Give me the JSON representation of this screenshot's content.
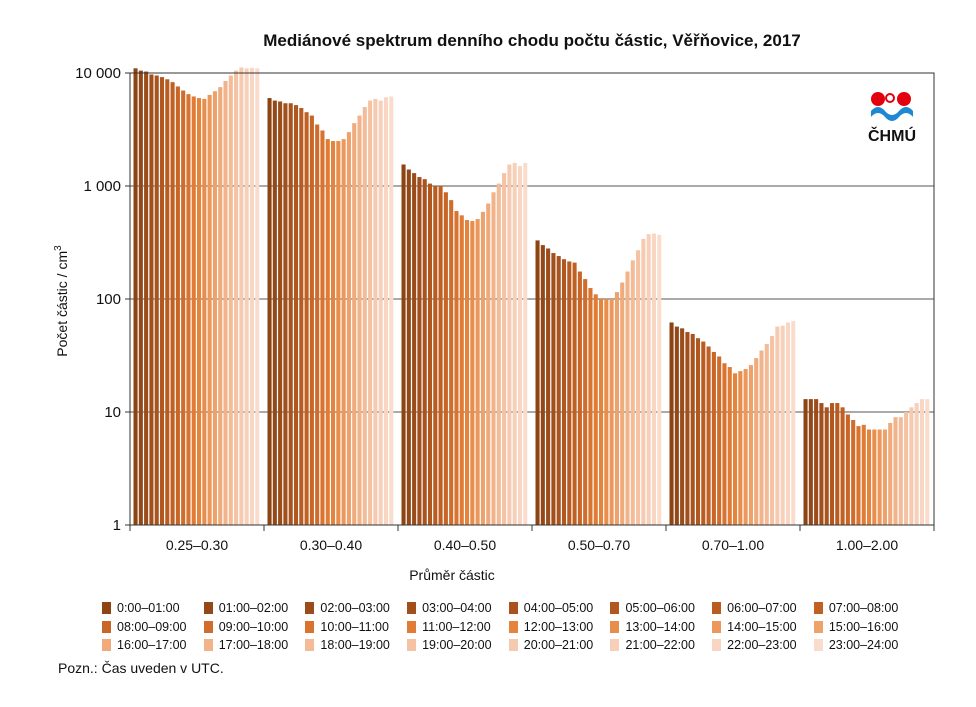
{
  "title": "Mediánové spektrum denního chodu počtu částic, Věřňovice, 2017",
  "note": "Pozn.: Čas uveden v UTC.",
  "logo_text": "ČHMÚ",
  "chart_data": {
    "type": "bar",
    "title": "Mediánové spektrum denního chodu počtu částic, Věřňovice, 2017",
    "xlabel": "Průměr částic",
    "ylabel": "Počet částic / cm",
    "ylabel_superscript": "3",
    "yscale": "log",
    "ylim": [
      1,
      10000
    ],
    "yticks": [
      1,
      10,
      100,
      1000,
      10000
    ],
    "ytick_labels": [
      "1",
      "10",
      "100",
      "1 000",
      "10 000"
    ],
    "grid": "horizontal",
    "legend_position": "bottom",
    "categories": [
      "0.25–0.30",
      "0.30–0.40",
      "0.40–0.50",
      "0.50–0.70",
      "0.70–1.00",
      "1.00–2.00"
    ],
    "colors": [
      "#8c4512",
      "#93481a",
      "#9a4c1a",
      "#a1501c",
      "#a9541e",
      "#b05820",
      "#b85c22",
      "#c06123",
      "#c86628",
      "#d06c2c",
      "#d8742f",
      "#e07c35",
      "#e5853d",
      "#e88e4d",
      "#ec985c",
      "#eea26b",
      "#f0ab7c",
      "#f1b38a",
      "#f3bb97",
      "#f5c3a4",
      "#f6cab0",
      "#f7d0ba",
      "#f9d6c4",
      "#fadccd"
    ],
    "series": [
      {
        "name": "0:00–01:00",
        "values": [
          11000,
          6000,
          1550,
          330,
          62,
          13
        ]
      },
      {
        "name": "01:00–02:00",
        "values": [
          10500,
          5700,
          1400,
          300,
          57,
          13
        ]
      },
      {
        "name": "02:00–03:00",
        "values": [
          10300,
          5600,
          1300,
          280,
          55,
          13
        ]
      },
      {
        "name": "03:00–04:00",
        "values": [
          9700,
          5400,
          1200,
          255,
          51,
          12
        ]
      },
      {
        "name": "04:00–05:00",
        "values": [
          9500,
          5400,
          1150,
          240,
          49,
          11
        ]
      },
      {
        "name": "05:00–06:00",
        "values": [
          9200,
          5200,
          1050,
          225,
          45,
          12
        ]
      },
      {
        "name": "06:00–07:00",
        "values": [
          8800,
          4900,
          1000,
          215,
          42,
          12
        ]
      },
      {
        "name": "07:00–08:00",
        "values": [
          8300,
          4500,
          1000,
          210,
          38,
          11
        ]
      },
      {
        "name": "08:00–09:00",
        "values": [
          7600,
          4200,
          880,
          175,
          34,
          9.5
        ]
      },
      {
        "name": "09:00–10:00",
        "values": [
          7000,
          3500,
          750,
          150,
          31,
          8.5
        ]
      },
      {
        "name": "10:00–11:00",
        "values": [
          6500,
          3100,
          600,
          125,
          27,
          7.5
        ]
      },
      {
        "name": "11:00–12:00",
        "values": [
          6200,
          2600,
          550,
          110,
          25,
          7.7
        ]
      },
      {
        "name": "12:00–13:00",
        "values": [
          6000,
          2500,
          500,
          100,
          22,
          7
        ]
      },
      {
        "name": "13:00–14:00",
        "values": [
          5900,
          2500,
          490,
          100,
          23,
          7
        ]
      },
      {
        "name": "14:00–15:00",
        "values": [
          6400,
          2600,
          510,
          100,
          24,
          7
        ]
      },
      {
        "name": "15:00–16:00",
        "values": [
          6900,
          3000,
          590,
          115,
          26,
          7
        ]
      },
      {
        "name": "16:00–17:00",
        "values": [
          7500,
          3600,
          700,
          140,
          30,
          8
        ]
      },
      {
        "name": "17:00–18:00",
        "values": [
          8500,
          4200,
          880,
          175,
          35,
          9
        ]
      },
      {
        "name": "18:00–19:00",
        "values": [
          9500,
          5000,
          1050,
          220,
          40,
          9
        ]
      },
      {
        "name": "19:00–20:00",
        "values": [
          10500,
          5700,
          1300,
          270,
          47,
          10
        ]
      },
      {
        "name": "20:00–21:00",
        "values": [
          11200,
          5900,
          1550,
          340,
          57,
          11
        ]
      },
      {
        "name": "21:00–22:00",
        "values": [
          11000,
          5700,
          1600,
          375,
          58,
          12
        ]
      },
      {
        "name": "22:00–23:00",
        "values": [
          11100,
          6100,
          1500,
          380,
          62,
          13
        ]
      },
      {
        "name": "23:00–24:00",
        "values": [
          11000,
          6200,
          1600,
          370,
          64,
          13
        ]
      }
    ]
  }
}
